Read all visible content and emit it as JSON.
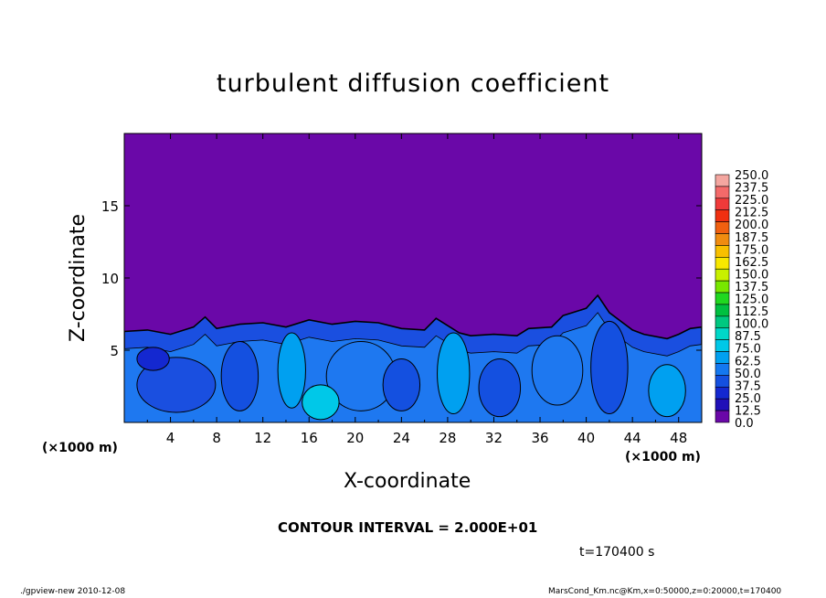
{
  "chart_data": {
    "type": "heatmap",
    "title": "turbulent diffusion coefficient",
    "xlabel": "X-coordinate",
    "ylabel": "Z-coordinate",
    "x_unit_left": "(×1000 m)",
    "x_unit_right": "(×1000 m)",
    "xlim": [
      0,
      50
    ],
    "ylim": [
      0,
      20
    ],
    "x_ticks": [
      "4",
      "8",
      "12",
      "16",
      "20",
      "24",
      "28",
      "32",
      "36",
      "40",
      "44",
      "48"
    ],
    "y_ticks": [
      "5",
      "10",
      "15"
    ],
    "colorbar_labels": [
      "250.0",
      "237.5",
      "225.0",
      "212.5",
      "200.0",
      "187.5",
      "175.0",
      "162.5",
      "150.0",
      "137.5",
      "125.0",
      "112.5",
      "100.0",
      "87.5",
      "75.0",
      "62.5",
      "50.0",
      "37.5",
      "25.0",
      "12.5",
      "0.0"
    ],
    "colorbar_colors": [
      "#f4a6a0",
      "#f46a6a",
      "#f03a3a",
      "#f03010",
      "#f06010",
      "#f08c10",
      "#f8c000",
      "#f8e800",
      "#c8f000",
      "#78e800",
      "#20d820",
      "#00c040",
      "#00c880",
      "#00d8c8",
      "#00c8e8",
      "#00a0f0",
      "#1478f0",
      "#1450e0",
      "#1428d0",
      "#2010b8",
      "#6a08a8"
    ],
    "background_color": "#6a08a8",
    "contour_interval": "CONTOUR INTERVAL = 2.000E+01",
    "time": "t=170400 s",
    "turbulent_layer_top_profile": [
      [
        0,
        6.3
      ],
      [
        2,
        6.4
      ],
      [
        4,
        6.1
      ],
      [
        6,
        6.6
      ],
      [
        7,
        7.3
      ],
      [
        8,
        6.5
      ],
      [
        10,
        6.8
      ],
      [
        12,
        6.9
      ],
      [
        14,
        6.6
      ],
      [
        16,
        7.1
      ],
      [
        18,
        6.8
      ],
      [
        20,
        7.0
      ],
      [
        22,
        6.9
      ],
      [
        24,
        6.5
      ],
      [
        26,
        6.4
      ],
      [
        27,
        7.2
      ],
      [
        29,
        6.2
      ],
      [
        30,
        6.0
      ],
      [
        32,
        6.1
      ],
      [
        34,
        6.0
      ],
      [
        35,
        6.5
      ],
      [
        37,
        6.6
      ],
      [
        38,
        7.4
      ],
      [
        40,
        7.9
      ],
      [
        41,
        8.8
      ],
      [
        42,
        7.6
      ],
      [
        43,
        7.0
      ],
      [
        44,
        6.4
      ],
      [
        45,
        6.1
      ],
      [
        47,
        5.8
      ],
      [
        48,
        6.1
      ],
      [
        49,
        6.5
      ],
      [
        50,
        6.6
      ]
    ]
  },
  "footer": {
    "left": "./gpview-new  2010-12-08",
    "right": "MarsCond_Km.nc@Km,x=0:50000,z=0:20000,t=170400"
  }
}
